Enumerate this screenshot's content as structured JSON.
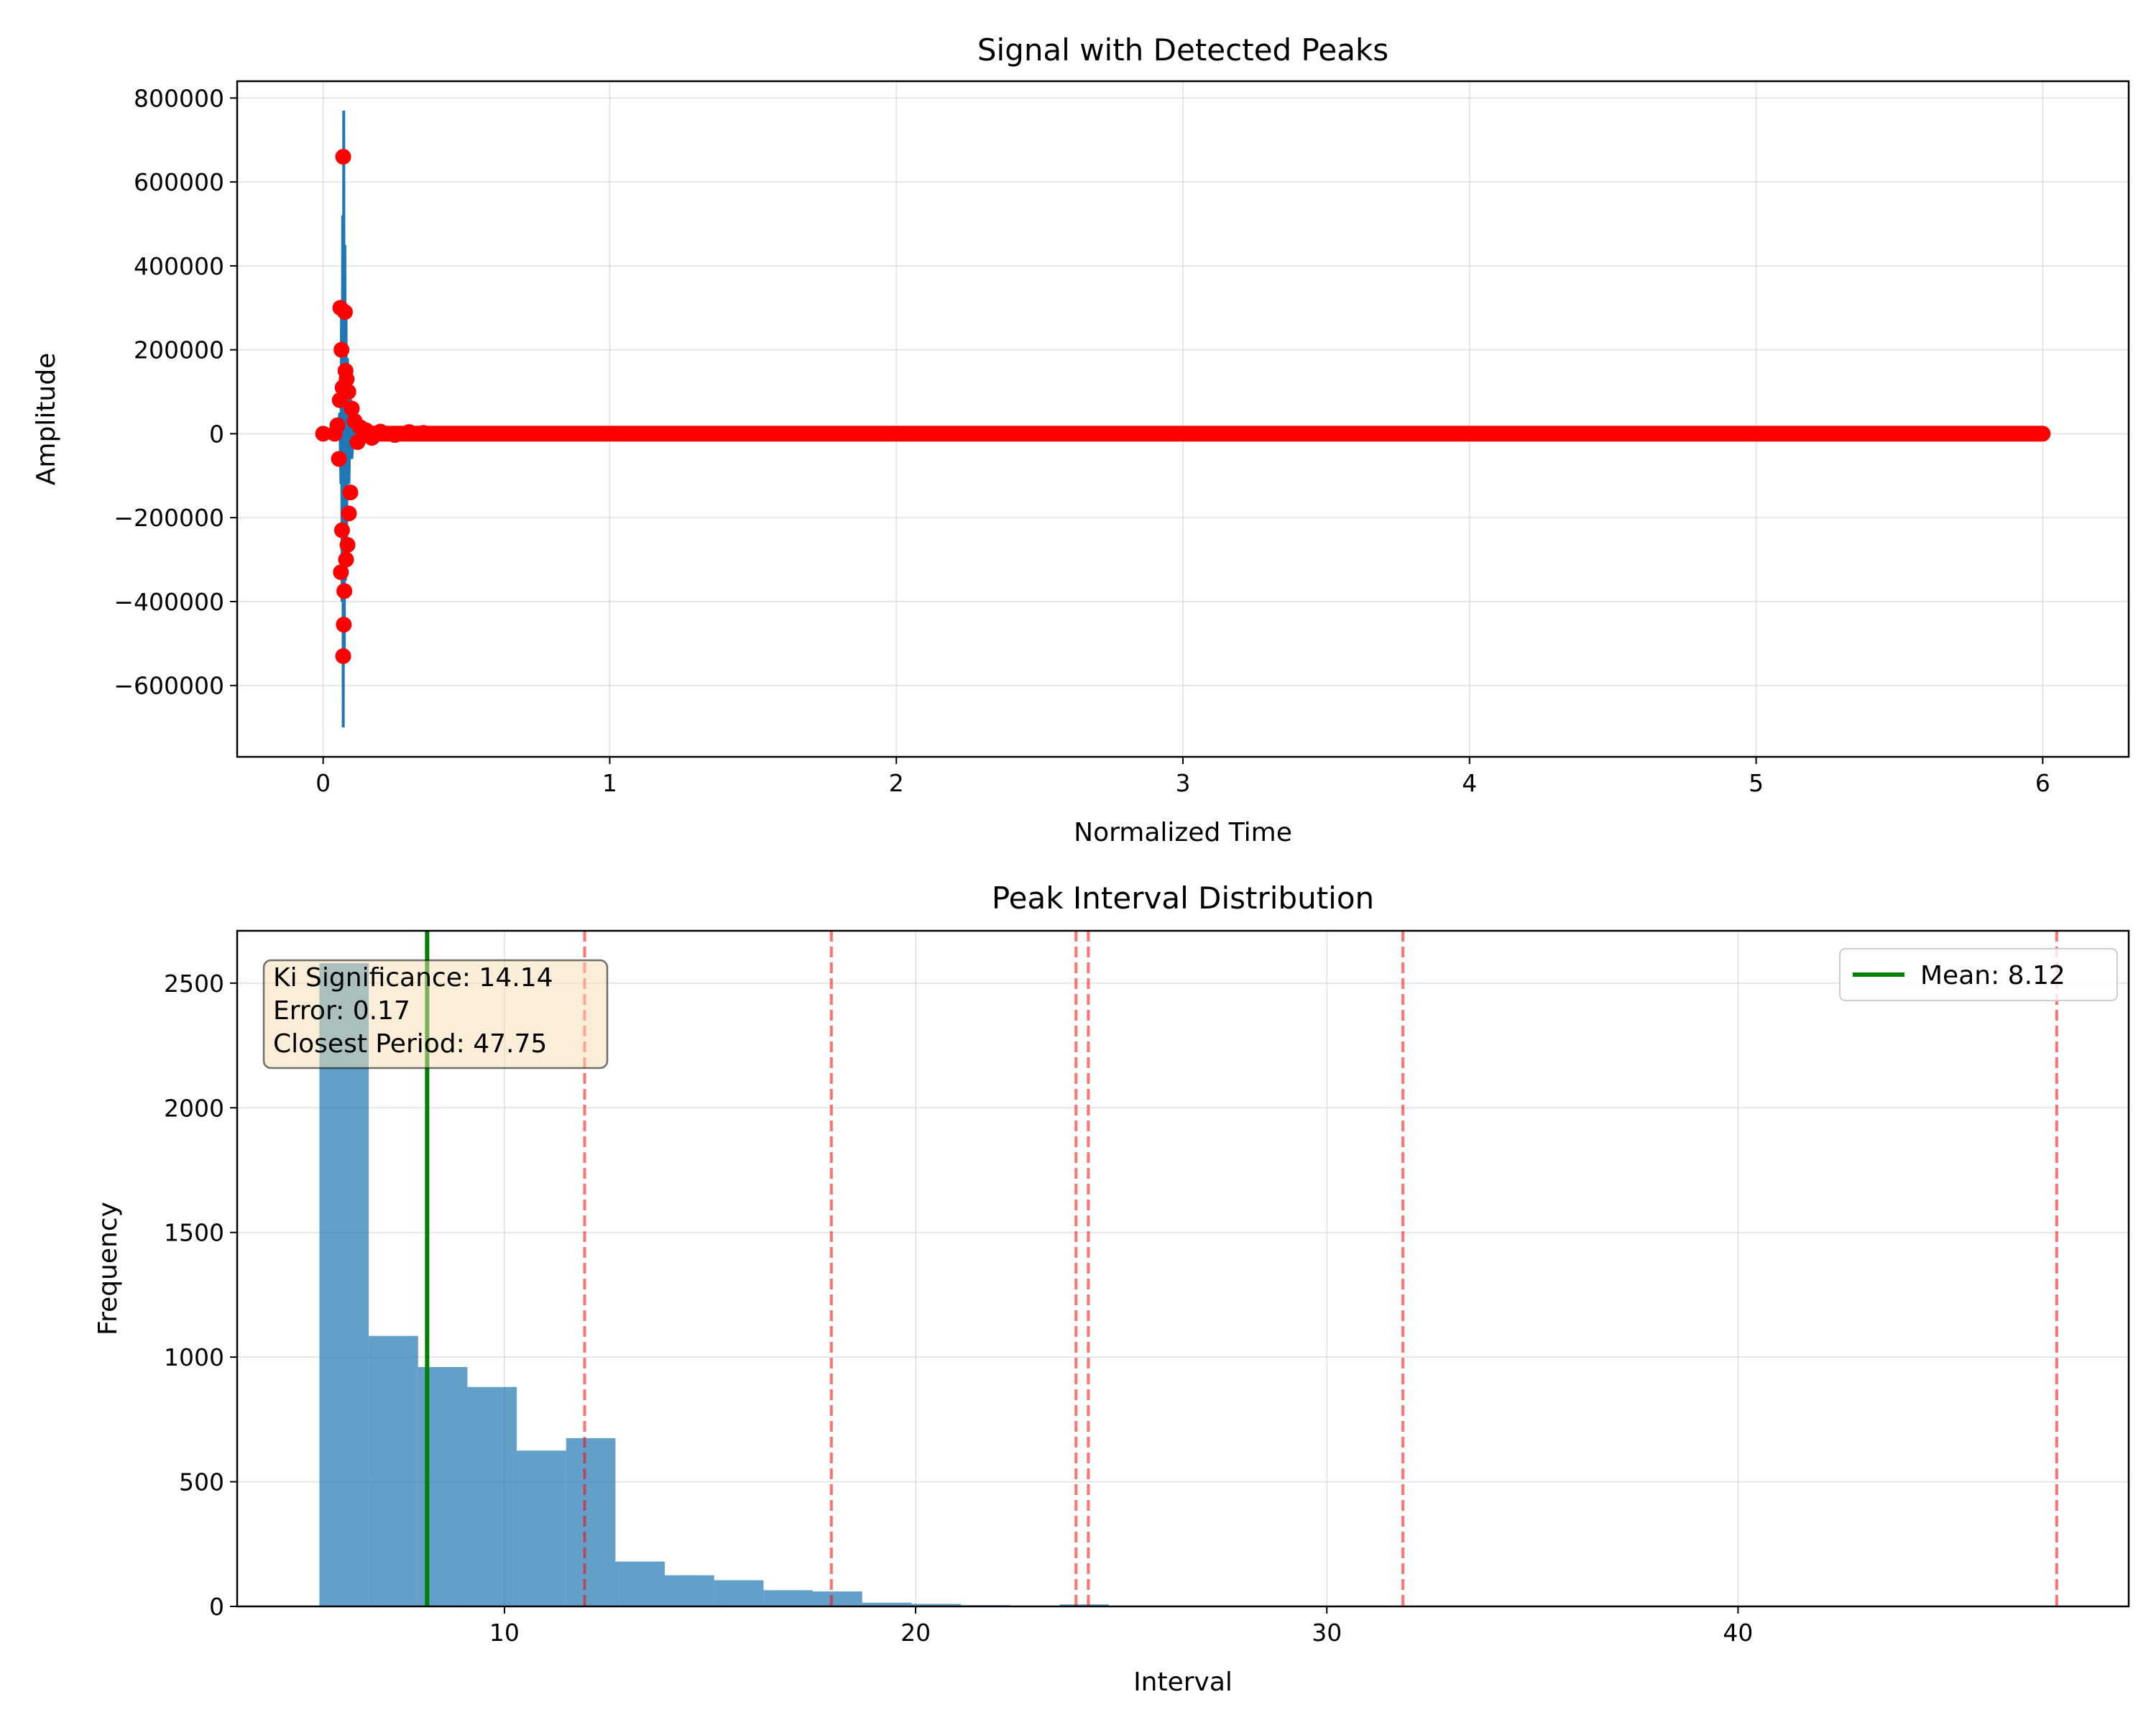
{
  "chart_data": [
    {
      "type": "line",
      "title": "Signal with Detected Peaks",
      "xlabel": "Normalized Time",
      "ylabel": "Amplitude",
      "xlim": [
        -0.3,
        6.3
      ],
      "ylim": [
        -770000,
        840000
      ],
      "grid": true,
      "x_ticks": [
        0,
        1,
        2,
        3,
        4,
        5,
        6
      ],
      "x_tick_labels": [
        "0",
        "1",
        "2",
        "3",
        "4",
        "5",
        "6"
      ],
      "y_ticks": [
        -600000,
        -400000,
        -200000,
        0,
        200000,
        400000,
        600000,
        800000
      ],
      "y_tick_labels": [
        "−600000",
        "−400000",
        "−200000",
        "0",
        "200000",
        "400000",
        "600000",
        "800000"
      ],
      "colors": {
        "signal": "#1f77b4",
        "peaks": "#ff0000"
      },
      "series": [
        {
          "kind": "signal-line",
          "x": [
            0.0,
            0.05,
            0.058,
            0.062,
            0.064,
            0.066,
            0.068,
            0.07,
            0.072,
            0.074,
            0.076,
            0.078,
            0.08,
            0.082,
            0.085,
            0.09,
            0.095,
            0.1,
            0.11,
            0.12,
            0.14,
            0.16,
            0.2,
            0.3,
            0.5,
            1.0,
            6.0
          ],
          "y": [
            0,
            0,
            50000,
            -120000,
            300000,
            -400000,
            520000,
            -700000,
            770000,
            -520000,
            450000,
            -350000,
            300000,
            -250000,
            180000,
            -120000,
            90000,
            -60000,
            40000,
            -25000,
            15000,
            -8000,
            5000,
            -2000,
            1000,
            0,
            0
          ]
        },
        {
          "kind": "peaks",
          "x": [
            0.0,
            0.04,
            0.05,
            0.055,
            0.058,
            0.06,
            0.062,
            0.064,
            0.066,
            0.068,
            0.07,
            0.07,
            0.072,
            0.074,
            0.076,
            0.078,
            0.08,
            0.082,
            0.085,
            0.088,
            0.09,
            0.095,
            0.1,
            0.11,
            0.12,
            0.13,
            0.15,
            0.17,
            0.2,
            0.25,
            0.3,
            0.35
          ],
          "y": [
            0,
            0,
            20000,
            -60000,
            80000,
            300000,
            -330000,
            200000,
            -230000,
            110000,
            660000,
            -530000,
            -455000,
            -375000,
            290000,
            150000,
            -300000,
            130000,
            -265000,
            100000,
            -190000,
            -140000,
            60000,
            30000,
            -20000,
            15000,
            8000,
            -10000,
            5000,
            -3000,
            4000,
            2000
          ]
        },
        {
          "kind": "peaks-band",
          "x_range": [
            0.15,
            6.0
          ],
          "y": 0
        }
      ]
    },
    {
      "type": "bar",
      "title": "Peak Interval Distribution",
      "xlabel": "Interval",
      "ylabel": "Frequency",
      "xlim": [
        3.5,
        49.5
      ],
      "ylim": [
        0,
        2710
      ],
      "grid": true,
      "x_ticks": [
        10,
        20,
        30,
        40
      ],
      "x_tick_labels": [
        "10",
        "20",
        "30",
        "40"
      ],
      "y_ticks": [
        0,
        500,
        1000,
        1500,
        2000,
        2500
      ],
      "y_tick_labels": [
        "0",
        "500",
        "1000",
        "1500",
        "2000",
        "2500"
      ],
      "colors": {
        "bars": "#1f77b4",
        "mean": "#008000",
        "periods": "#ff0000"
      },
      "bin_edges": [
        5.5,
        6.7,
        7.9,
        9.1,
        10.3,
        11.5,
        12.7,
        13.9,
        15.1,
        16.3,
        17.5,
        18.7,
        19.9,
        21.1,
        22.3,
        23.5,
        24.7
      ],
      "values": [
        2580,
        1085,
        960,
        880,
        625,
        675,
        180,
        125,
        105,
        65,
        60,
        15,
        10,
        5,
        2,
        8
      ],
      "mean": 8.12,
      "period_lines": [
        11.95,
        17.95,
        23.9,
        24.2,
        31.85,
        47.75
      ],
      "legend": {
        "placement": "top-right",
        "entries": [
          "Mean: 8.12"
        ]
      },
      "stats_box": [
        "Ki Significance: 14.14",
        "Error: 0.17",
        "Closest Period: 47.75"
      ]
    }
  ]
}
